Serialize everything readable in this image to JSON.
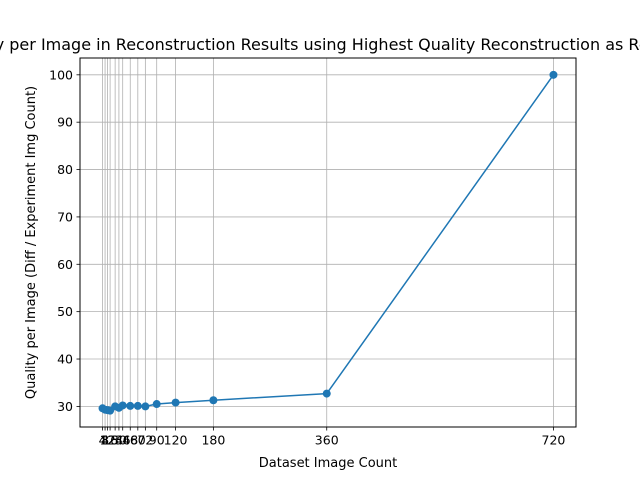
{
  "chart_data": {
    "type": "line",
    "title": "Quality per Image in Reconstruction Results using Highest Quality Reconstruction as Reference",
    "xlabel": "Dataset Image Count",
    "ylabel": "Quality per Image (Diff / Experiment Img Count)",
    "x": [
      4,
      8,
      12,
      16,
      24,
      30,
      36,
      48,
      60,
      72,
      90,
      120,
      180,
      360,
      720
    ],
    "x_tick_labels": [
      "4",
      "8",
      "12",
      "16",
      "24",
      "30",
      "36",
      "48",
      "60",
      "72",
      "90",
      "120",
      "180",
      "360",
      "720"
    ],
    "series": [
      {
        "name": "",
        "values": [
          29.6,
          29.3,
          29.2,
          29.1,
          30.0,
          29.7,
          30.2,
          30.1,
          30.1,
          30.0,
          30.5,
          30.8,
          31.3,
          32.7,
          100.0
        ]
      }
    ],
    "xlim": [
      -31.8,
      755.8
    ],
    "ylim": [
      25.65,
      103.55
    ],
    "y_ticks": [
      30,
      40,
      50,
      60,
      70,
      80,
      90,
      100
    ],
    "grid": true,
    "legend": "none",
    "colors": {
      "line": "#1f77b4",
      "grid": "#b0b0b0",
      "axes": "#000000"
    }
  }
}
